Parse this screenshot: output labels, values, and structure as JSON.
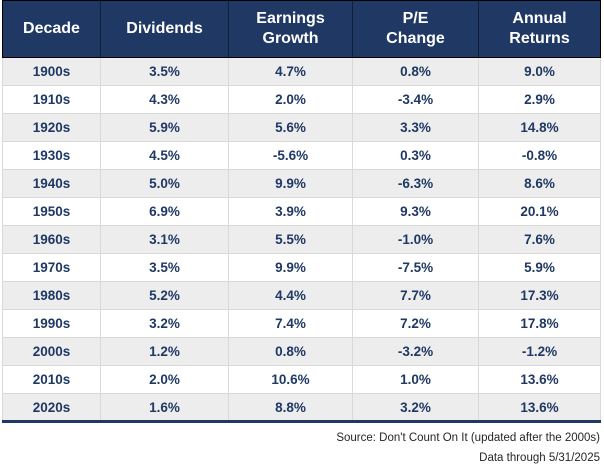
{
  "chart_data": {
    "type": "table",
    "title": "",
    "columns": [
      "Decade",
      "Dividends",
      "Earnings\nGrowth",
      "P/E\nChange",
      "Annual\nReturns"
    ],
    "rows": [
      [
        "1900s",
        "3.5%",
        "4.7%",
        "0.8%",
        "9.0%"
      ],
      [
        "1910s",
        "4.3%",
        "2.0%",
        "-3.4%",
        "2.9%"
      ],
      [
        "1920s",
        "5.9%",
        "5.6%",
        "3.3%",
        "14.8%"
      ],
      [
        "1930s",
        "4.5%",
        "-5.6%",
        "0.3%",
        "-0.8%"
      ],
      [
        "1940s",
        "5.0%",
        "9.9%",
        "-6.3%",
        "8.6%"
      ],
      [
        "1950s",
        "6.9%",
        "3.9%",
        "9.3%",
        "20.1%"
      ],
      [
        "1960s",
        "3.1%",
        "5.5%",
        "-1.0%",
        "7.6%"
      ],
      [
        "1970s",
        "3.5%",
        "9.9%",
        "-7.5%",
        "5.9%"
      ],
      [
        "1980s",
        "5.2%",
        "4.4%",
        "7.7%",
        "17.3%"
      ],
      [
        "1990s",
        "3.2%",
        "7.4%",
        "7.2%",
        "17.8%"
      ],
      [
        "2000s",
        "1.2%",
        "0.8%",
        "-3.2%",
        "-1.2%"
      ],
      [
        "2010s",
        "2.0%",
        "10.6%",
        "1.0%",
        "13.6%"
      ],
      [
        "2020s",
        "1.6%",
        "8.8%",
        "3.2%",
        "13.6%"
      ]
    ],
    "source_note": "Source: Don't Count On It (updated after the 2000s)",
    "data_through_note": "Data through 5/31/2025",
    "layout": {
      "legend": "none",
      "grid": "row-striped",
      "header_position": "top"
    }
  },
  "colors": {
    "header_bg": "#1F3864",
    "header_text": "#FFFFFF",
    "cell_text": "#1F3864",
    "stripe_bg": "#EDEDEE",
    "row_bg": "#FFFFFF",
    "divider": "#D9D9D9",
    "header_divider": "#000000",
    "table_bottom_border": "#1F3864",
    "footnote_text": "#262626"
  }
}
